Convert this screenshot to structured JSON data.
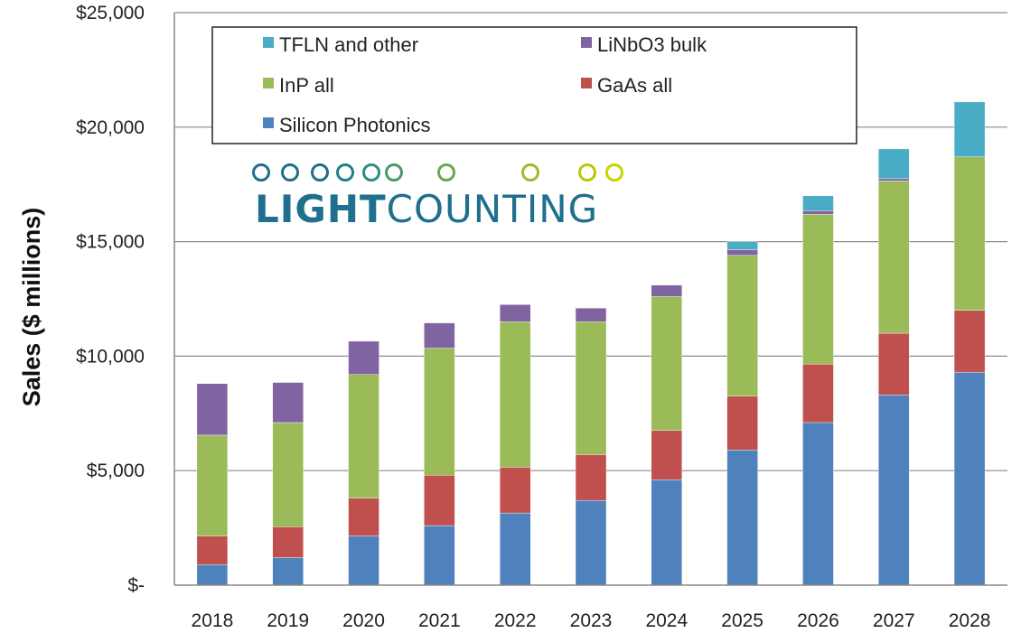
{
  "chart_data": {
    "type": "bar",
    "stacked": true,
    "title": "",
    "xlabel": "",
    "ylabel": "Sales ($ millions)",
    "ylim": [
      0,
      25000
    ],
    "yticks": [
      0,
      5000,
      10000,
      15000,
      20000,
      25000
    ],
    "ytick_labels": [
      "$-",
      "$5,000",
      "$10,000",
      "$15,000",
      "$20,000",
      "$25,000"
    ],
    "grid": true,
    "legend_position": "top-left",
    "categories": [
      "2018",
      "2019",
      "2020",
      "2021",
      "2022",
      "2023",
      "2024",
      "2025",
      "2026",
      "2027",
      "2028"
    ],
    "series": [
      {
        "name": "Silicon Photonics",
        "color": "#4f81bd",
        "values": [
          900,
          1200,
          2150,
          2600,
          3150,
          3700,
          4600,
          5900,
          7100,
          8300,
          9300
        ]
      },
      {
        "name": "GaAs all",
        "color": "#c0504d",
        "values": [
          1250,
          1350,
          1650,
          2200,
          2000,
          2000,
          2150,
          2350,
          2550,
          2700,
          2700
        ]
      },
      {
        "name": "InP all",
        "color": "#9bbb59",
        "values": [
          4400,
          4550,
          5400,
          5550,
          6350,
          5800,
          5850,
          6150,
          6550,
          6650,
          6700
        ]
      },
      {
        "name": "LiNbO3 bulk",
        "color": "#8064a2",
        "values": [
          2250,
          1750,
          1450,
          1100,
          750,
          600,
          500,
          250,
          150,
          100,
          0
        ]
      },
      {
        "name": "TFLN and other",
        "color": "#4bacc6",
        "values": [
          0,
          0,
          0,
          0,
          0,
          0,
          0,
          350,
          650,
          1300,
          2400
        ]
      }
    ],
    "legend_order": [
      "TFLN and other",
      "LiNbO3 bulk",
      "InP all",
      "GaAs all",
      "Silicon Photonics"
    ]
  },
  "logo": {
    "text_bold": "LIGHT",
    "text_regular": "COUNTING",
    "color": "#1f6f8e",
    "accent_color": "#c8d400"
  }
}
